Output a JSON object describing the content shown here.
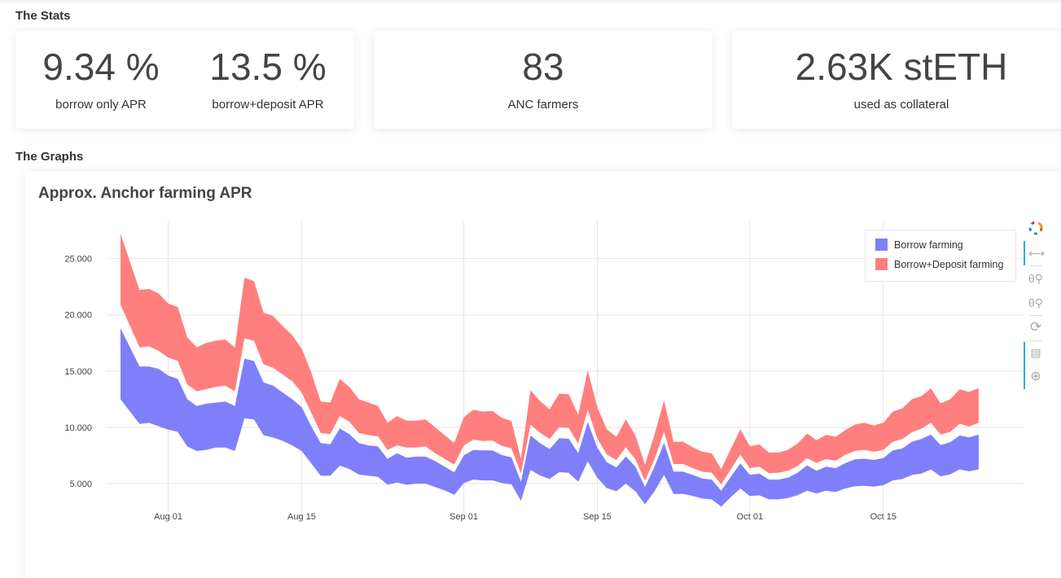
{
  "sections": {
    "stats": "The Stats",
    "graphs": "The Graphs"
  },
  "stats": [
    {
      "value": "9.34 %",
      "label": "borrow only APR"
    },
    {
      "value": "13.5 %",
      "label": "borrow+deposit APR"
    },
    {
      "value": "83",
      "label": "ANC farmers"
    },
    {
      "value": "2.63K stETH",
      "label": "used as collateral"
    }
  ],
  "toolbar": {
    "icons": [
      "bokeh-logo-icon",
      "pan-icon",
      "wheel-zoom-in-icon",
      "wheel-zoom-out-icon",
      "reset-icon",
      "hover-icon",
      "crosshair-icon"
    ]
  },
  "chart_data": {
    "type": "area",
    "title": "Approx. Anchor farming APR",
    "xlabel": "",
    "ylabel": "",
    "x_start": "Jul 27",
    "x_step_days": 1,
    "x_ticks": [
      "Aug 01",
      "Aug 15",
      "Sep 01",
      "Sep 15",
      "Oct 01",
      "Oct 15"
    ],
    "x_tick_days_from_start": [
      5,
      19,
      36,
      50,
      66,
      80
    ],
    "y_ticks": [
      "5.000",
      "10.000",
      "15.000",
      "20.000",
      "25.000"
    ],
    "y_tick_values": [
      5,
      10,
      15,
      20,
      25
    ],
    "ylim": [
      2.4,
      28.3
    ],
    "grid": true,
    "legend_position": "top-right",
    "series": [
      {
        "name": "Borrow farming",
        "color": "#7f7ff9",
        "upper": [
          18.8,
          17.1,
          15.4,
          15.4,
          15.2,
          14.6,
          14.3,
          12.5,
          11.9,
          12.1,
          12.2,
          12.3,
          11.9,
          16.1,
          15.9,
          14.0,
          13.7,
          13.1,
          12.5,
          11.8,
          10.1,
          8.6,
          8.5,
          9.9,
          9.4,
          8.6,
          8.4,
          8.3,
          7.2,
          7.7,
          7.3,
          7.4,
          7.4,
          7.0,
          6.5,
          6.0,
          7.51,
          7.99,
          7.95,
          7.95,
          7.54,
          7.34,
          5.17,
          9.28,
          8.6,
          8.07,
          9.03,
          8.99,
          7.71,
          10.48,
          8.19,
          6.91,
          6.43,
          7.42,
          6.5,
          4.69,
          6.5,
          8.62,
          6.06,
          6.06,
          5.77,
          5.46,
          5.36,
          4.37,
          5.6,
          6.79,
          5.77,
          5.89,
          5.36,
          5.36,
          5.53,
          5.97,
          6.62,
          6.14,
          6.5,
          6.38,
          6.81,
          7.15,
          7.22,
          7.1,
          7.27,
          7.95,
          8.12,
          8.72,
          8.96,
          9.35,
          8.43,
          8.67,
          9.28,
          9.11,
          9.35
        ],
        "lower": [
          12.5,
          11.4,
          10.3,
          10.4,
          10.1,
          9.8,
          9.6,
          8.3,
          7.9,
          8.0,
          8.2,
          8.2,
          7.9,
          10.8,
          10.7,
          9.3,
          9.1,
          8.8,
          8.4,
          7.9,
          6.8,
          5.7,
          5.7,
          6.6,
          6.3,
          5.8,
          5.7,
          5.6,
          4.9,
          5.1,
          4.9,
          5.0,
          5.0,
          4.7,
          4.4,
          4.0,
          5.05,
          5.36,
          5.29,
          5.29,
          5.05,
          4.93,
          3.48,
          6.21,
          5.73,
          5.41,
          6.02,
          5.97,
          5.17,
          6.98,
          5.53,
          4.61,
          4.32,
          5.0,
          4.32,
          3.16,
          4.32,
          5.77,
          4.08,
          4.08,
          3.91,
          3.67,
          3.6,
          2.95,
          3.79,
          4.57,
          3.89,
          3.96,
          3.6,
          3.6,
          3.72,
          3.96,
          4.37,
          4.13,
          4.37,
          4.25,
          4.57,
          4.76,
          4.81,
          4.74,
          4.86,
          5.29,
          5.41,
          5.77,
          5.89,
          6.26,
          5.65,
          5.82,
          6.26,
          6.09,
          6.26
        ]
      },
      {
        "name": "Borrow+Deposit farming",
        "color": "#ff7f7f",
        "upper": [
          27.2,
          24.7,
          22.2,
          22.3,
          21.9,
          21.0,
          20.7,
          18.0,
          17.1,
          17.5,
          17.7,
          17.8,
          17.1,
          23.3,
          23.0,
          20.2,
          19.9,
          19.0,
          18.2,
          17.0,
          14.9,
          12.3,
          12.2,
          14.3,
          13.6,
          12.5,
          12.2,
          11.9,
          10.4,
          11.0,
          10.6,
          10.6,
          10.7,
          10.0,
          9.3,
          8.6,
          10.9,
          11.57,
          11.4,
          11.45,
          10.85,
          10.56,
          7.2,
          13.3,
          12.34,
          11.6,
          13.0,
          12.95,
          11.1,
          15.07,
          11.8,
          9.83,
          9.16,
          10.7,
          9.28,
          6.69,
          9.35,
          12.4,
          8.72,
          8.72,
          8.24,
          7.83,
          7.7,
          6.3,
          8.07,
          9.83,
          8.31,
          8.48,
          7.76,
          7.76,
          8.0,
          8.55,
          9.45,
          8.87,
          9.33,
          9.16,
          9.76,
          10.24,
          10.41,
          10.17,
          10.41,
          11.4,
          11.69,
          12.49,
          12.78,
          13.46,
          12.13,
          12.49,
          13.38,
          13.14,
          13.5
        ],
        "lower": [
          20.9,
          19.0,
          17.1,
          17.2,
          16.8,
          16.2,
          15.9,
          13.8,
          13.2,
          13.4,
          13.6,
          13.7,
          13.2,
          17.9,
          17.7,
          15.6,
          15.3,
          14.7,
          14.1,
          13.1,
          11.3,
          9.5,
          9.4,
          11.0,
          10.5,
          9.5,
          9.3,
          9.2,
          8.0,
          8.4,
          8.2,
          8.2,
          8.3,
          7.7,
          7.2,
          6.7,
          8.38,
          8.91,
          8.79,
          8.82,
          8.36,
          8.14,
          5.9,
          10.24,
          9.52,
          8.96,
          10.0,
          9.95,
          8.55,
          11.57,
          9.03,
          7.58,
          7.1,
          8.24,
          7.17,
          5.24,
          7.17,
          9.59,
          6.74,
          6.74,
          6.38,
          6.06,
          5.97,
          4.93,
          6.26,
          7.58,
          6.38,
          6.5,
          5.94,
          5.96,
          6.14,
          6.55,
          7.27,
          6.84,
          7.18,
          7.03,
          7.56,
          7.9,
          8.0,
          7.83,
          8.0,
          8.72,
          8.96,
          9.57,
          9.88,
          10.41,
          9.35,
          9.59,
          10.32,
          10.07,
          10.41
        ]
      }
    ]
  }
}
